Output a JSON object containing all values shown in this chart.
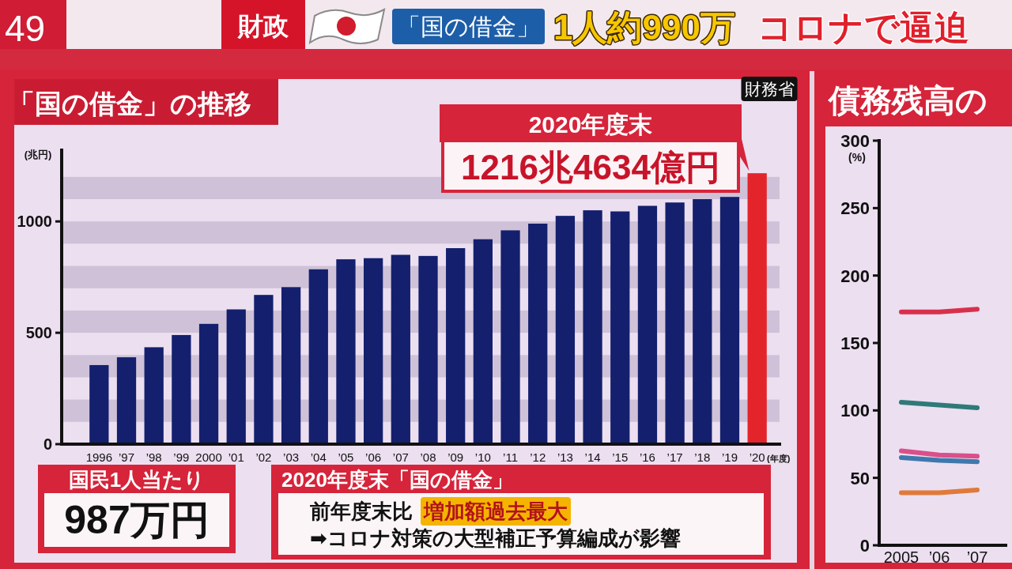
{
  "chart_data": [
    {
      "type": "bar",
      "title": "「国の借金」の推移",
      "xlabel": "(年度)",
      "ylabel": "(兆円)",
      "categories": [
        "1996",
        "’97",
        "’98",
        "’99",
        "2000",
        "’01",
        "’02",
        "’03",
        "’04",
        "’05",
        "’06",
        "’07",
        "’08",
        "’09",
        "’10",
        "’11",
        "’12",
        "’13",
        "’14",
        "’15",
        "’16",
        "’17",
        "’18",
        "’19",
        "’20"
      ],
      "values": [
        355,
        390,
        435,
        490,
        540,
        605,
        670,
        705,
        785,
        830,
        835,
        850,
        845,
        880,
        920,
        960,
        990,
        1025,
        1050,
        1045,
        1070,
        1085,
        1100,
        1110,
        1216.4634
      ],
      "colors": [
        "#14206e",
        "#14206e",
        "#14206e",
        "#14206e",
        "#14206e",
        "#14206e",
        "#14206e",
        "#14206e",
        "#14206e",
        "#14206e",
        "#14206e",
        "#14206e",
        "#14206e",
        "#14206e",
        "#14206e",
        "#14206e",
        "#14206e",
        "#14206e",
        "#14206e",
        "#14206e",
        "#14206e",
        "#14206e",
        "#14206e",
        "#14206e",
        "#e3242b"
      ],
      "value_labels": [
        null,
        null,
        null,
        null,
        null,
        null,
        null,
        null,
        null,
        null,
        null,
        null,
        null,
        null,
        null,
        null,
        null,
        null,
        null,
        null,
        null,
        null,
        null,
        null,
        "1216兆4634億円"
      ],
      "ylim": [
        0,
        1320
      ],
      "yticks": [
        0,
        500,
        1000
      ],
      "bands": [
        {
          "axis": "y",
          "from": 100,
          "to": 200,
          "color": "#cfc2d8"
        },
        {
          "axis": "y",
          "from": 300,
          "to": 400,
          "color": "#cfc2d8"
        },
        {
          "axis": "y",
          "from": 500,
          "to": 600,
          "color": "#cfc2d8"
        },
        {
          "axis": "y",
          "from": 700,
          "to": 800,
          "color": "#cfc2d8"
        },
        {
          "axis": "y",
          "from": 900,
          "to": 1000,
          "color": "#cfc2d8"
        },
        {
          "axis": "y",
          "from": 1100,
          "to": 1200,
          "color": "#cfc2d8"
        }
      ],
      "annotations": [
        "49",
        "財政",
        "「国の借金」",
        "1人約990万",
        "コロナで逼迫",
        "財務省",
        "2020年度末",
        "国民1人当たり",
        "987万円",
        "2020年度末「国の借金」",
        "前年度末比",
        "増加額過去最大",
        "➡コロナ対策の大型補正予算編成が影響"
      ]
    },
    {
      "type": "line",
      "title": "債務残高の",
      "ylabel": "(%)",
      "categories": [
        "2005",
        "’06",
        "’07"
      ],
      "series": [
        {
          "color": "#d8304c",
          "values": [
            173,
            173,
            175
          ]
        },
        {
          "color": "#2f7a78",
          "values": [
            106,
            104,
            102
          ]
        },
        {
          "color": "#d9508a",
          "values": [
            70,
            67,
            66
          ]
        },
        {
          "color": "#3f78ad",
          "values": [
            65,
            63,
            62
          ]
        },
        {
          "color": "#e07a3a",
          "values": [
            39,
            39,
            41
          ]
        }
      ],
      "ylim": [
        0,
        300
      ],
      "yticks": [
        0,
        50,
        100,
        150,
        200,
        250,
        300
      ],
      "line_style": "solid"
    }
  ]
}
